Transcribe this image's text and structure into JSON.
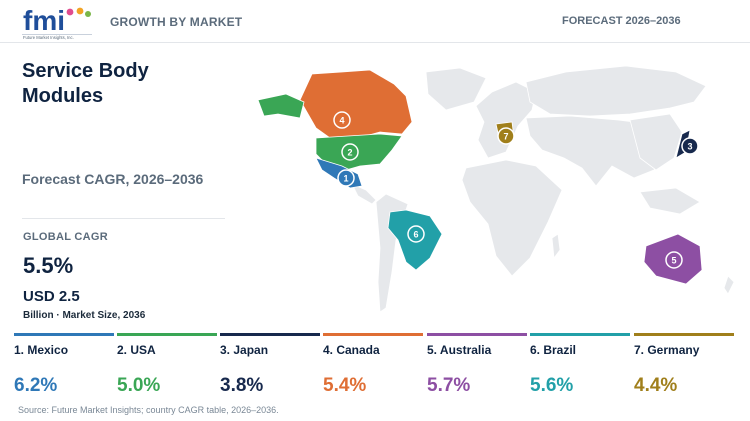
{
  "header": {
    "logo_text": "fmi",
    "logo_tagline": "Future Market Insights, Inc.",
    "left": "GROWTH BY MARKET",
    "right": "FORECAST 2026–2036"
  },
  "title": "Service Body Modules",
  "subtitle": "Forecast CAGR, 2026–2036",
  "global": {
    "label": "GLOBAL CAGR",
    "value": "5.5%",
    "market_size": "USD 2.5",
    "market_size_note": "Billion · Market Size, 2036"
  },
  "colors": {
    "map_land": "#e6e8eb",
    "mexico": "#2f78b7",
    "usa": "#3aa655",
    "japan": "#17294d",
    "canada": "#df6e34",
    "australia": "#8d4fa3",
    "brazil": "#22a0a8",
    "germany": "#a07f1b"
  },
  "chart_data": {
    "type": "choropleth-map",
    "metric": "CAGR 2026–2036 (%)",
    "countries": [
      {
        "rank": "1",
        "name": "Mexico",
        "label": "1. Mexico",
        "cagr": 6.2,
        "display": "6.2%",
        "color": "#2f78b7"
      },
      {
        "rank": "2",
        "name": "USA",
        "label": "2. USA",
        "cagr": 5.0,
        "display": "5.0%",
        "color": "#3aa655"
      },
      {
        "rank": "3",
        "name": "Japan",
        "label": "3. Japan",
        "cagr": 3.8,
        "display": "3.8%",
        "color": "#17294d"
      },
      {
        "rank": "4",
        "name": "Canada",
        "label": "4. Canada",
        "cagr": 5.4,
        "display": "5.4%",
        "color": "#df6e34"
      },
      {
        "rank": "5",
        "name": "Australia",
        "label": "5. Australia",
        "cagr": 5.7,
        "display": "5.7%",
        "color": "#8d4fa3"
      },
      {
        "rank": "6",
        "name": "Brazil",
        "label": "6. Brazil",
        "cagr": 5.6,
        "display": "5.6%",
        "color": "#22a0a8"
      },
      {
        "rank": "7",
        "name": "Germany",
        "label": "7. Germany",
        "cagr": 4.4,
        "display": "4.4%",
        "color": "#a07f1b"
      }
    ]
  },
  "source": "Source: Future Market Insights; country CAGR table, 2026–2036."
}
